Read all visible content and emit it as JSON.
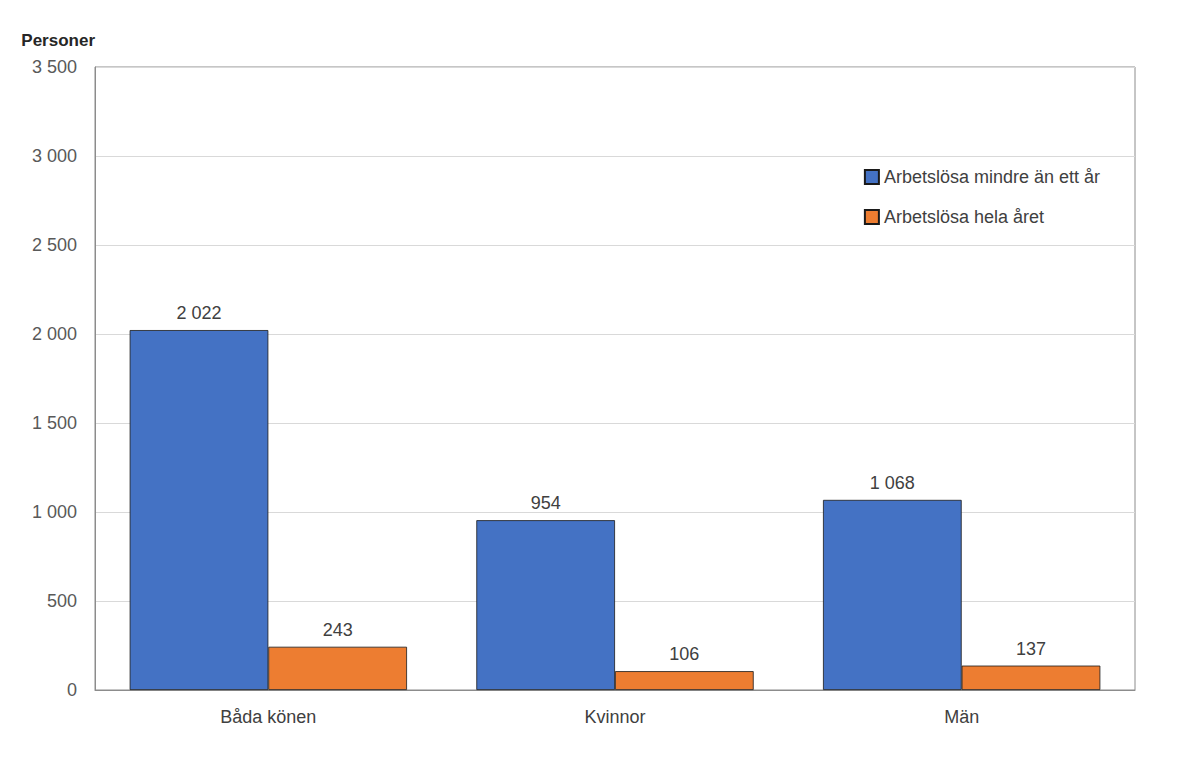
{
  "chart_data": {
    "type": "bar",
    "ylabel": "Personer",
    "categories": [
      "Båda könen",
      "Kvinnor",
      "Män"
    ],
    "series": [
      {
        "name": "Arbetslösa mindre än ett år",
        "color": "#4472c4",
        "values": [
          2022,
          954,
          1068
        ],
        "value_labels": [
          "2 022",
          "954",
          "1 068"
        ]
      },
      {
        "name": "Arbetslösa hela året",
        "color": "#ed7d31",
        "values": [
          243,
          106,
          137
        ],
        "value_labels": [
          "243",
          "106",
          "137"
        ]
      }
    ],
    "ylim": [
      0,
      3500
    ],
    "yticks": [
      0,
      500,
      {
        "value": 1000,
        "label": "1 000"
      },
      {
        "value": 1500,
        "label": "1 500"
      },
      {
        "value": 2000,
        "label": "2 000"
      },
      {
        "value": 2500,
        "label": "2 500"
      },
      {
        "value": 3000,
        "label": "3 000"
      },
      {
        "value": 3500,
        "label": "3 500"
      }
    ],
    "grid": true,
    "legend": "upper right",
    "data_labels": true
  }
}
